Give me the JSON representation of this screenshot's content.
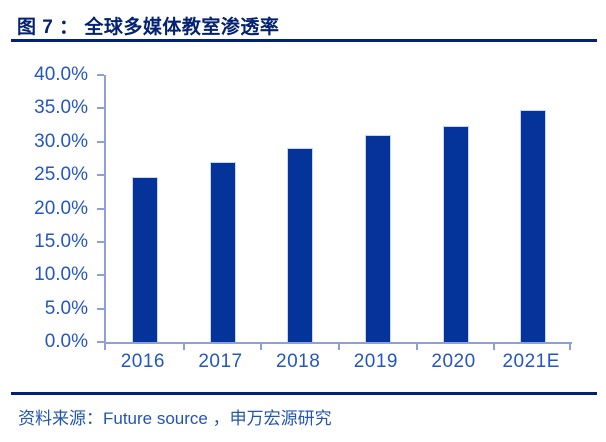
{
  "header": {
    "title": "图 7 ： 全球多媒体教室渗透率"
  },
  "chart_data": {
    "type": "bar",
    "title": "全球多媒体教室渗透率",
    "categories": [
      "2016",
      "2017",
      "2018",
      "2019",
      "2020",
      "2021E"
    ],
    "values": [
      24.7,
      27.0,
      29.0,
      31.0,
      32.3,
      34.8
    ],
    "unit": "percent",
    "xlabel": "",
    "ylabel": "",
    "ylim": [
      0,
      40
    ],
    "ytick_step": 5,
    "ytick_labels": [
      "40.0%",
      "35.0%",
      "30.0%",
      "25.0%",
      "20.0%",
      "15.0%",
      "10.0%",
      "5.0%",
      "0.0%"
    ],
    "grid": false,
    "legend": "none",
    "bar_color": "#04349A",
    "axis_line_color": "#8E9FDD",
    "axis_text_color": "#2456C4"
  },
  "footer": {
    "source": "资料来源：Future source ，申万宏源研究"
  },
  "colors": {
    "title_text": "#032272",
    "rule": "#032272",
    "bar_fill": "#04349A",
    "bar_border": "#C9D4F0",
    "axis_line": "#8E9FDD",
    "axis_text": "#2456C4",
    "source_text": "#2355B4"
  }
}
